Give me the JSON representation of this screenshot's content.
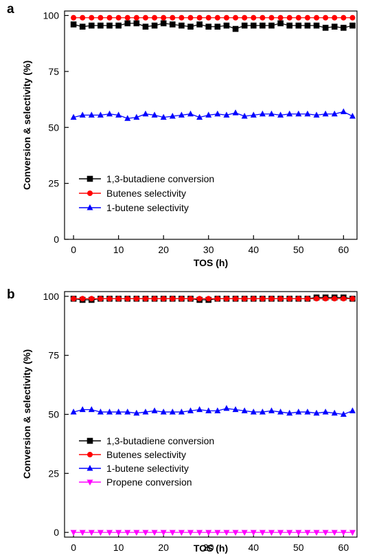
{
  "chart_data": [
    {
      "panel": "a",
      "type": "line",
      "xlabel": "TOS (h)",
      "ylabel": "Conversion & selectivity (%)",
      "xlim": [
        -2,
        63
      ],
      "ylim": [
        0,
        102
      ],
      "xticks": [
        0,
        10,
        20,
        30,
        40,
        50,
        60
      ],
      "yticks": [
        0,
        25,
        50,
        75,
        100
      ],
      "legend": "bottom-left",
      "x": [
        0,
        2,
        4,
        6,
        8,
        10,
        12,
        14,
        16,
        18,
        20,
        22,
        24,
        26,
        28,
        30,
        32,
        34,
        36,
        38,
        40,
        42,
        44,
        46,
        48,
        50,
        52,
        54,
        56,
        58,
        60,
        62
      ],
      "series": [
        {
          "name": "1,3-butadiene conversion",
          "color": "#000000",
          "marker": "square",
          "values": [
            96,
            95,
            95.5,
            95.5,
            95.5,
            95.5,
            96.5,
            96.5,
            95,
            95.5,
            96.5,
            96,
            95.5,
            95,
            96,
            95,
            95,
            95.5,
            94,
            95.5,
            95.5,
            95.5,
            95.5,
            96.5,
            95.5,
            95.5,
            95.5,
            95.5,
            94.5,
            95,
            94.5,
            95.5
          ]
        },
        {
          "name": "Butenes selectivity",
          "color": "#ff0000",
          "marker": "circle",
          "values": [
            99,
            99,
            99,
            99,
            99,
            99,
            99,
            99,
            99,
            99,
            99,
            99,
            99,
            99,
            99,
            99,
            99,
            99,
            99,
            99,
            99,
            99,
            99,
            99,
            99,
            99,
            99,
            99,
            99,
            99,
            99,
            99
          ]
        },
        {
          "name": "1-butene selectivity",
          "color": "#0000ff",
          "marker": "triangle-up",
          "values": [
            54.5,
            55.5,
            55.5,
            55.5,
            56,
            55.5,
            54,
            54.5,
            56,
            55.5,
            54.5,
            55,
            55.5,
            56,
            54.5,
            55.5,
            56,
            55.5,
            56.5,
            55,
            55.5,
            56,
            56,
            55.5,
            56,
            56,
            56,
            55.5,
            56,
            56,
            57,
            55
          ]
        }
      ]
    },
    {
      "panel": "b",
      "type": "line",
      "xlabel": "TOS (h)",
      "ylabel": "Conversion & selectivity (%)",
      "xlim": [
        -2,
        63
      ],
      "ylim": [
        -2,
        102
      ],
      "xticks": [
        0,
        10,
        20,
        30,
        40,
        50,
        60
      ],
      "yticks": [
        0,
        25,
        50,
        75,
        100
      ],
      "legend": "bottom-left",
      "x": [
        0,
        2,
        4,
        6,
        8,
        10,
        12,
        14,
        16,
        18,
        20,
        22,
        24,
        26,
        28,
        30,
        32,
        34,
        36,
        38,
        40,
        42,
        44,
        46,
        48,
        50,
        52,
        54,
        56,
        58,
        60,
        62
      ],
      "series": [
        {
          "name": "1,3-butadiene conversion",
          "color": "#000000",
          "marker": "square",
          "values": [
            99,
            98.5,
            98.5,
            99,
            99,
            99,
            99,
            99,
            99,
            99,
            99,
            99,
            99,
            99,
            98.5,
            98.5,
            99,
            99,
            99,
            99,
            99,
            99,
            99,
            99,
            99,
            99,
            99,
            99.5,
            99.5,
            99.5,
            99.5,
            99
          ]
        },
        {
          "name": "Butenes selectivity",
          "color": "#ff0000",
          "marker": "circle",
          "values": [
            99,
            99,
            99,
            99,
            99,
            99,
            99,
            99,
            99,
            99,
            99,
            99,
            99,
            99,
            99,
            99,
            99,
            99,
            99,
            99,
            99,
            99,
            99,
            99,
            99,
            99,
            99,
            99,
            99,
            99,
            99,
            99
          ]
        },
        {
          "name": "1-butene selectivity",
          "color": "#0000ff",
          "marker": "triangle-up",
          "values": [
            51,
            52,
            52,
            51,
            51,
            51,
            51,
            50.5,
            51,
            51.5,
            51,
            51,
            51,
            51.5,
            52,
            51.5,
            51.5,
            52.5,
            52,
            51.5,
            51,
            51,
            51.5,
            51,
            50.5,
            51,
            51,
            50.5,
            51,
            50.5,
            50,
            51.5
          ]
        },
        {
          "name": "Propene conversion",
          "color": "#ff00ff",
          "marker": "triangle-down",
          "values": [
            0,
            0,
            0,
            0,
            0,
            0,
            0,
            0,
            0,
            0,
            0,
            0,
            0,
            0,
            0,
            0,
            0,
            0,
            0,
            0,
            0,
            0,
            0,
            0,
            0,
            0,
            0,
            0,
            0,
            0,
            0,
            0
          ]
        }
      ]
    }
  ]
}
